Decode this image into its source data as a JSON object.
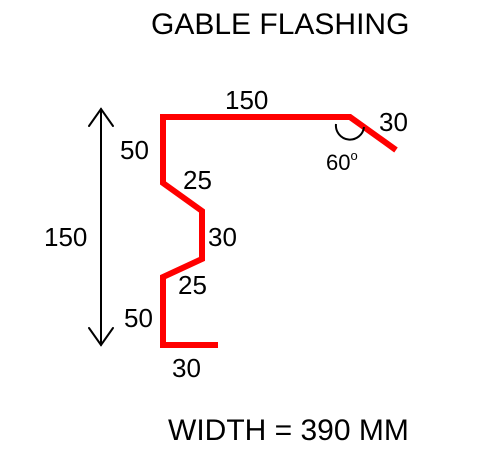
{
  "title": "GABLE FLASHING",
  "footer": "WIDTH = 390 MM",
  "colors": {
    "profile": "#ff0000",
    "text": "#000000",
    "background": "#ffffff"
  },
  "dimensions": {
    "top_length": "150",
    "drip_edge": "30",
    "angle_value": "60",
    "angle_unit": "o",
    "upper_vertical": "50",
    "upper_diagonal": "25",
    "middle_vertical": "30",
    "lower_diagonal": "25",
    "lower_vertical": "50",
    "bottom_return": "30",
    "overall_height": "150"
  }
}
